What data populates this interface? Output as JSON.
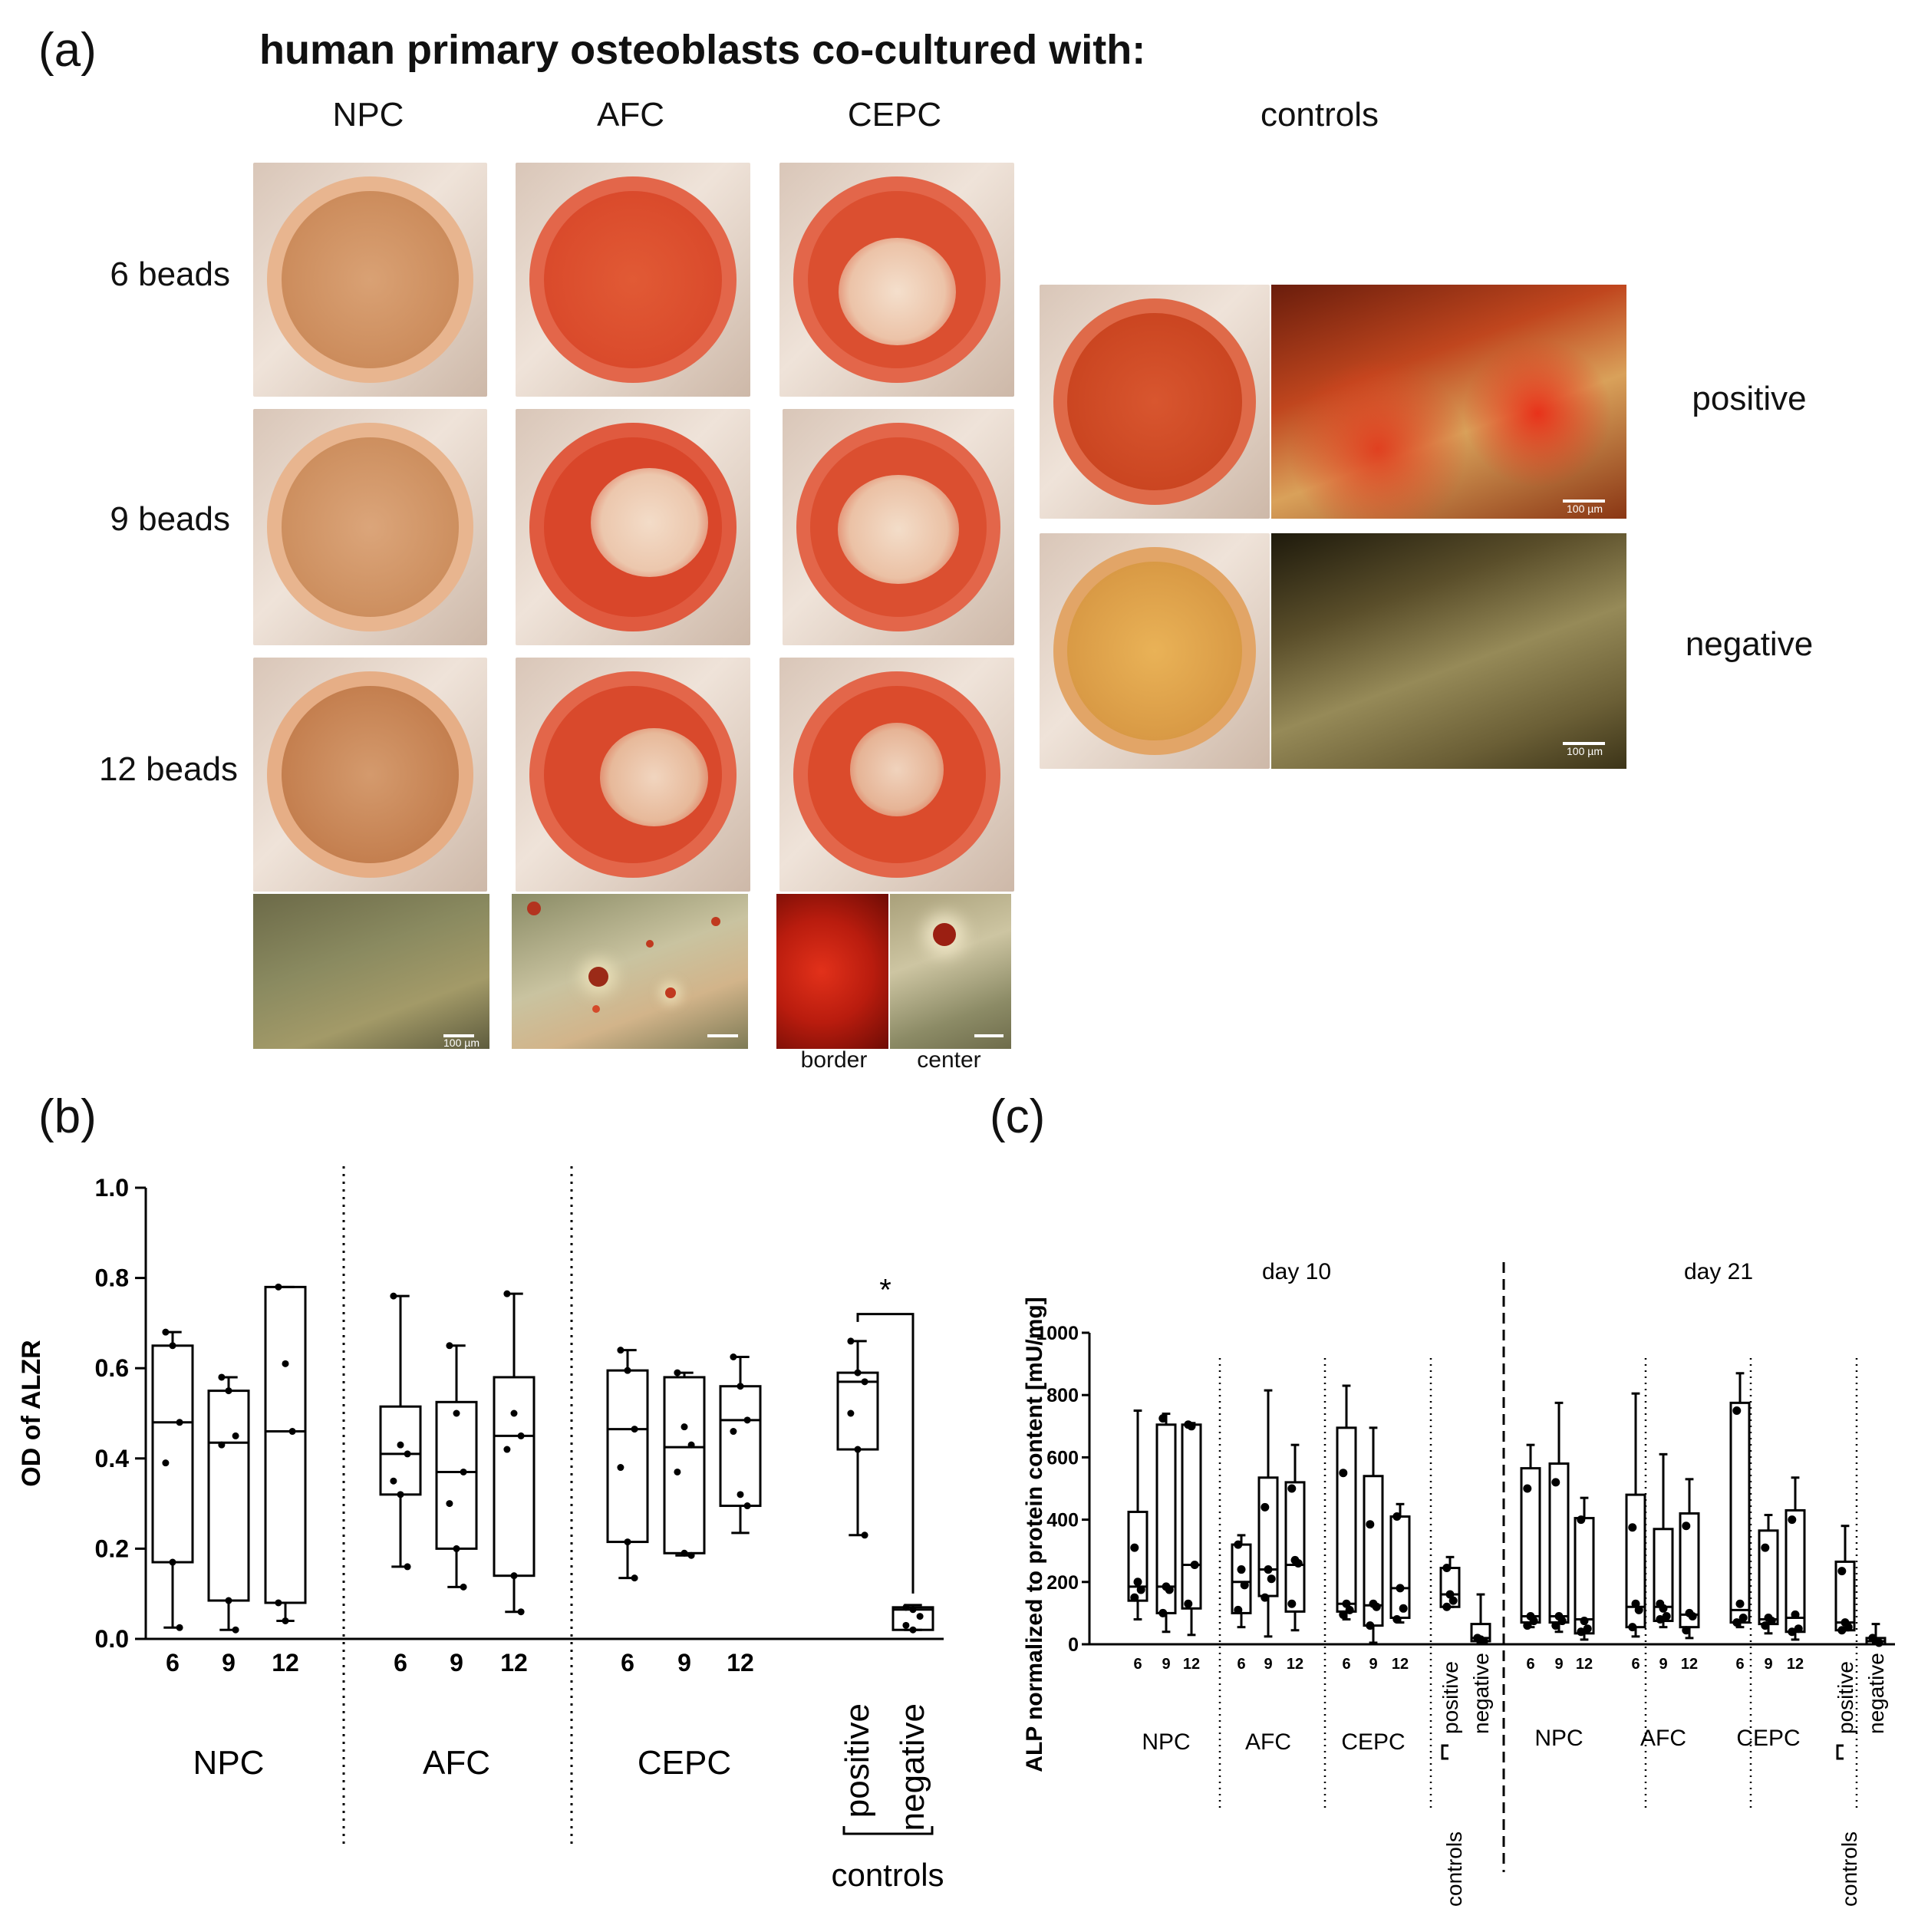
{
  "panel_a": {
    "letter": "(a)",
    "title": "human primary osteoblasts co-cultured with:",
    "columns": [
      "NPC",
      "AFC",
      "CEPC"
    ],
    "controls_header": "controls",
    "rows": [
      "6 beads",
      "9 beads",
      "12 beads"
    ],
    "micro_labels": [
      "border",
      "center"
    ],
    "control_rows": [
      "positive",
      "negative"
    ],
    "scale_bar": "100 µm"
  },
  "panel_b": {
    "letter": "(b)"
  },
  "panel_c": {
    "letter": "(c)"
  },
  "chart_data": [
    {
      "type": "box",
      "panel": "b",
      "ylabel": "OD of ALZR",
      "ylim": [
        0,
        1.0
      ],
      "yticks": [
        "0.0",
        "0.2",
        "0.4",
        "0.6",
        "0.8",
        "1.0"
      ],
      "groups": [
        {
          "name": "NPC",
          "categories": [
            "6",
            "9",
            "12"
          ]
        },
        {
          "name": "AFC",
          "categories": [
            "6",
            "9",
            "12"
          ]
        },
        {
          "name": "CEPC",
          "categories": [
            "6",
            "9",
            "12"
          ]
        },
        {
          "name": "controls",
          "categories": [
            "positive",
            "negative"
          ]
        }
      ],
      "boxes": [
        {
          "group": "NPC",
          "x": "6",
          "min": 0.025,
          "q1": 0.17,
          "median": 0.48,
          "q3": 0.65,
          "max": 0.68,
          "points": [
            0.68,
            0.65,
            0.48,
            0.39,
            0.17,
            0.025
          ]
        },
        {
          "group": "NPC",
          "x": "9",
          "min": 0.02,
          "q1": 0.085,
          "median": 0.435,
          "q3": 0.55,
          "max": 0.58,
          "points": [
            0.58,
            0.55,
            0.45,
            0.43,
            0.085,
            0.02
          ]
        },
        {
          "group": "NPC",
          "x": "12",
          "min": 0.04,
          "q1": 0.08,
          "median": 0.46,
          "q3": 0.78,
          "max": 0.78,
          "points": [
            0.78,
            0.61,
            0.46,
            0.08,
            0.04
          ]
        },
        {
          "group": "AFC",
          "x": "6",
          "min": 0.16,
          "q1": 0.32,
          "median": 0.41,
          "q3": 0.515,
          "max": 0.76,
          "points": [
            0.76,
            0.43,
            0.41,
            0.35,
            0.32,
            0.16
          ]
        },
        {
          "group": "AFC",
          "x": "9",
          "min": 0.115,
          "q1": 0.2,
          "median": 0.37,
          "q3": 0.525,
          "max": 0.65,
          "points": [
            0.65,
            0.5,
            0.37,
            0.3,
            0.2,
            0.115
          ]
        },
        {
          "group": "AFC",
          "x": "12",
          "min": 0.06,
          "q1": 0.14,
          "median": 0.45,
          "q3": 0.58,
          "max": 0.765,
          "points": [
            0.765,
            0.5,
            0.45,
            0.42,
            0.14,
            0.06
          ]
        },
        {
          "group": "CEPC",
          "x": "6",
          "min": 0.135,
          "q1": 0.215,
          "median": 0.465,
          "q3": 0.595,
          "max": 0.64,
          "points": [
            0.64,
            0.595,
            0.465,
            0.38,
            0.215,
            0.135
          ]
        },
        {
          "group": "CEPC",
          "x": "9",
          "min": 0.185,
          "q1": 0.19,
          "median": 0.425,
          "q3": 0.58,
          "max": 0.59,
          "points": [
            0.59,
            0.47,
            0.43,
            0.37,
            0.19,
            0.185
          ]
        },
        {
          "group": "CEPC",
          "x": "12",
          "min": 0.235,
          "q1": 0.295,
          "median": 0.485,
          "q3": 0.56,
          "max": 0.625,
          "points": [
            0.625,
            0.56,
            0.485,
            0.46,
            0.32,
            0.295
          ]
        },
        {
          "group": "controls",
          "x": "positive",
          "min": 0.23,
          "q1": 0.42,
          "median": 0.57,
          "q3": 0.59,
          "max": 0.66,
          "points": [
            0.66,
            0.59,
            0.57,
            0.5,
            0.42,
            0.23
          ]
        },
        {
          "group": "controls",
          "x": "negative",
          "min": 0.02,
          "q1": 0.02,
          "median": 0.065,
          "q3": 0.07,
          "max": 0.075,
          "points": [
            0.07,
            0.065,
            0.05,
            0.03,
            0.02
          ]
        }
      ],
      "annotations": [
        "*"
      ]
    },
    {
      "type": "box",
      "panel": "c",
      "ylabel": "ALP normalized to protein content [mU/mg]",
      "ylim": [
        0,
        1000
      ],
      "yticks": [
        "0",
        "200",
        "400",
        "600",
        "800",
        "1000"
      ],
      "sections": [
        "day 10",
        "day 21"
      ],
      "groups": [
        {
          "name": "NPC",
          "categories": [
            "6",
            "9",
            "12"
          ]
        },
        {
          "name": "AFC",
          "categories": [
            "6",
            "9",
            "12"
          ]
        },
        {
          "name": "CEPC",
          "categories": [
            "6",
            "9",
            "12"
          ]
        },
        {
          "name": "controls",
          "categories": [
            "positive",
            "negative"
          ]
        }
      ],
      "boxes": [
        {
          "section": "day 10",
          "group": "NPC",
          "x": "6",
          "min": 80,
          "q1": 140,
          "median": 185,
          "q3": 425,
          "max": 750,
          "points": [
            310,
            200,
            175,
            150
          ]
        },
        {
          "section": "day 10",
          "group": "NPC",
          "x": "9",
          "min": 40,
          "q1": 100,
          "median": 185,
          "q3": 705,
          "max": 740,
          "points": [
            725,
            185,
            175,
            100
          ]
        },
        {
          "section": "day 10",
          "group": "NPC",
          "x": "12",
          "min": 30,
          "q1": 115,
          "median": 255,
          "q3": 705,
          "max": 710,
          "points": [
            705,
            700,
            255,
            130
          ]
        },
        {
          "section": "day 10",
          "group": "AFC",
          "x": "6",
          "min": 55,
          "q1": 100,
          "median": 200,
          "q3": 320,
          "max": 350,
          "points": [
            320,
            240,
            190,
            110
          ]
        },
        {
          "section": "day 10",
          "group": "AFC",
          "x": "9",
          "min": 25,
          "q1": 155,
          "median": 240,
          "q3": 535,
          "max": 815,
          "points": [
            440,
            240,
            210,
            150
          ]
        },
        {
          "section": "day 10",
          "group": "AFC",
          "x": "12",
          "min": 45,
          "q1": 105,
          "median": 255,
          "q3": 520,
          "max": 640,
          "points": [
            500,
            270,
            260,
            130
          ]
        },
        {
          "section": "day 10",
          "group": "CEPC",
          "x": "6",
          "min": 80,
          "q1": 105,
          "median": 130,
          "q3": 695,
          "max": 830,
          "points": [
            550,
            130,
            110,
            95
          ]
        },
        {
          "section": "day 10",
          "group": "CEPC",
          "x": "9",
          "min": 5,
          "q1": 60,
          "median": 125,
          "q3": 540,
          "max": 695,
          "points": [
            385,
            130,
            120,
            60
          ]
        },
        {
          "section": "day 10",
          "group": "CEPC",
          "x": "12",
          "min": 70,
          "q1": 85,
          "median": 180,
          "q3": 410,
          "max": 450,
          "points": [
            410,
            180,
            115,
            80
          ]
        },
        {
          "section": "day 10",
          "group": "controls",
          "x": "positive",
          "min": 120,
          "q1": 120,
          "median": 160,
          "q3": 245,
          "max": 280,
          "points": [
            245,
            160,
            140,
            120
          ]
        },
        {
          "section": "day 10",
          "group": "controls",
          "x": "negative",
          "min": 5,
          "q1": 10,
          "median": 20,
          "q3": 65,
          "max": 160,
          "points": [
            20,
            15,
            10
          ]
        },
        {
          "section": "day 21",
          "group": "NPC",
          "x": "6",
          "min": 55,
          "q1": 70,
          "median": 90,
          "q3": 565,
          "max": 640,
          "points": [
            500,
            90,
            75,
            60
          ]
        },
        {
          "section": "day 21",
          "group": "NPC",
          "x": "9",
          "min": 40,
          "q1": 70,
          "median": 90,
          "q3": 580,
          "max": 775,
          "points": [
            520,
            90,
            75,
            60
          ]
        },
        {
          "section": "day 21",
          "group": "NPC",
          "x": "12",
          "min": 15,
          "q1": 35,
          "median": 80,
          "q3": 405,
          "max": 470,
          "points": [
            400,
            75,
            50,
            40
          ]
        },
        {
          "section": "day 21",
          "group": "AFC",
          "x": "6",
          "min": 25,
          "q1": 55,
          "median": 120,
          "q3": 480,
          "max": 805,
          "points": [
            375,
            130,
            110,
            55
          ]
        },
        {
          "section": "day 21",
          "group": "AFC",
          "x": "9",
          "min": 55,
          "q1": 75,
          "median": 120,
          "q3": 370,
          "max": 610,
          "points": [
            130,
            115,
            90,
            80
          ]
        },
        {
          "section": "day 21",
          "group": "AFC",
          "x": "12",
          "min": 20,
          "q1": 55,
          "median": 95,
          "q3": 420,
          "max": 530,
          "points": [
            380,
            100,
            90,
            45
          ]
        },
        {
          "section": "day 21",
          "group": "CEPC",
          "x": "6",
          "min": 55,
          "q1": 70,
          "median": 110,
          "q3": 775,
          "max": 870,
          "points": [
            750,
            130,
            85,
            70
          ]
        },
        {
          "section": "day 21",
          "group": "CEPC",
          "x": "9",
          "min": 35,
          "q1": 65,
          "median": 80,
          "q3": 365,
          "max": 415,
          "points": [
            310,
            85,
            75,
            60
          ]
        },
        {
          "section": "day 21",
          "group": "CEPC",
          "x": "12",
          "min": 15,
          "q1": 40,
          "median": 85,
          "q3": 430,
          "max": 535,
          "points": [
            400,
            95,
            50,
            40
          ]
        },
        {
          "section": "day 21",
          "group": "controls",
          "x": "positive",
          "min": 45,
          "q1": 45,
          "median": 70,
          "q3": 265,
          "max": 380,
          "points": [
            235,
            70,
            55,
            45
          ]
        },
        {
          "section": "day 21",
          "group": "controls",
          "x": "negative",
          "min": 0,
          "q1": 0,
          "median": 10,
          "q3": 20,
          "max": 65,
          "points": [
            20,
            10,
            5
          ]
        }
      ]
    }
  ]
}
